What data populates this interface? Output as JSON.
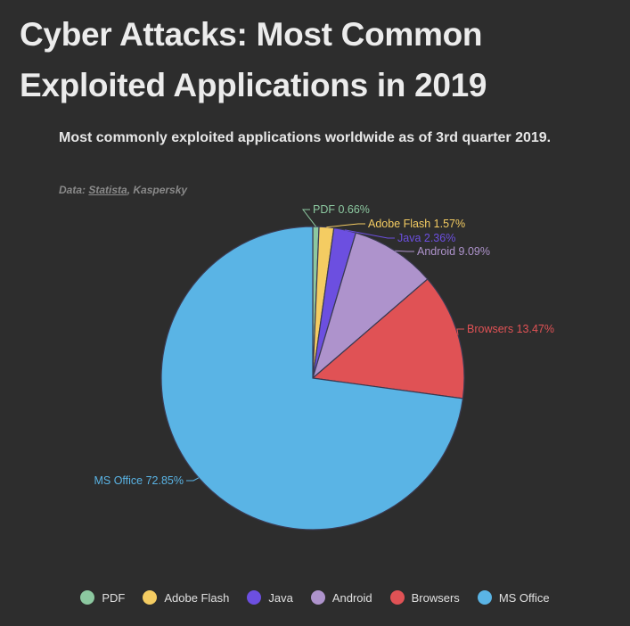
{
  "header": {
    "title": "Cyber Attacks: Most Common Exploited Applications in 2019",
    "subtitle": "Most commonly exploited applications worldwide as of 3rd quarter 2019.",
    "source_prefix": "Data: ",
    "source_link": "Statista",
    "source_rest": ", Kaspersky"
  },
  "chart_data": {
    "type": "pie",
    "categories": [
      "PDF",
      "Adobe Flash",
      "Java",
      "Android",
      "Browsers",
      "MS Office"
    ],
    "values": [
      0.66,
      1.57,
      2.36,
      9.09,
      13.47,
      72.85
    ],
    "unit": "%",
    "colors": [
      "#8cc8a0",
      "#f4cc62",
      "#6c4fe0",
      "#ae93cc",
      "#e05255",
      "#5ab4e5"
    ],
    "legend_position": "bottom",
    "data_labels": [
      "PDF 0.66%",
      "Adobe Flash 1.57%",
      "Java 2.36%",
      "Android 9.09%",
      "Browsers 13.47%",
      "MS Office 72.85%"
    ]
  }
}
